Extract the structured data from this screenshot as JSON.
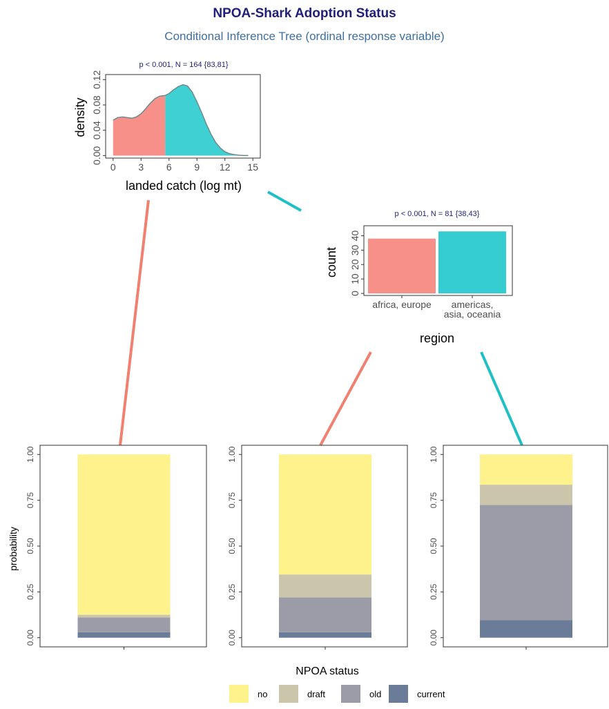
{
  "title": "NPOA-Shark Adoption Status",
  "subtitle": "Conditional Inference Tree (ordinal response variable)",
  "colors": {
    "left_branch": "#f08070",
    "right_branch": "#1ec0c4",
    "density_left": "#f8908a",
    "density_right": "#3fd0d3",
    "bar_left": "#f8908a",
    "bar_right": "#36cdd2",
    "no": "#fdf28c",
    "draft": "#cbc5ab",
    "old": "#9c9ca8",
    "current": "#6a7c98"
  },
  "chart_data": [
    {
      "type": "area",
      "node_label": "p < 0.001, N = 164 {83,81}",
      "xlabel": "landed catch (log mt)",
      "ylabel": "density",
      "x_ticks": [
        "0",
        "3",
        "6",
        "9",
        "12",
        "15"
      ],
      "y_ticks": [
        "0.00",
        "0.04",
        "0.08",
        "0.12"
      ],
      "xlim": [
        -0.8,
        15.8
      ],
      "ylim": [
        -0.004,
        0.128
      ],
      "split_x": 5.6,
      "x": [
        0,
        0.5,
        1,
        1.5,
        2,
        2.5,
        3,
        3.5,
        4,
        4.5,
        5,
        5.6,
        6,
        6.5,
        7,
        7.5,
        8,
        8.5,
        9,
        9.5,
        10,
        10.5,
        11,
        11.5,
        12,
        12.5,
        13,
        13.5,
        14,
        14.5
      ],
      "y": [
        0.056,
        0.06,
        0.061,
        0.06,
        0.059,
        0.061,
        0.066,
        0.074,
        0.083,
        0.09,
        0.094,
        0.095,
        0.098,
        0.104,
        0.109,
        0.112,
        0.11,
        0.1,
        0.085,
        0.068,
        0.05,
        0.034,
        0.021,
        0.012,
        0.006,
        0.003,
        0.0015,
        0.0006,
        0.0002,
        0.0
      ]
    },
    {
      "type": "bar",
      "node_label": "p < 0.001, N = 81 {38,43}",
      "xlabel": "region",
      "ylabel": "count",
      "categories": [
        "africa, europe",
        "americas, asia, oceania"
      ],
      "category_lines": [
        [
          "africa, europe"
        ],
        [
          "americas,",
          "asia, oceania"
        ]
      ],
      "values": [
        38,
        43
      ],
      "y_ticks": [
        "0",
        "10",
        "20",
        "30",
        "40"
      ],
      "ylim": [
        0,
        45
      ]
    },
    {
      "type": "bar",
      "stacked": true,
      "panel": "leaf-1",
      "ylabel": "probability",
      "y_ticks": [
        "0.00",
        "0.25",
        "0.50",
        "0.75",
        "1.00"
      ],
      "ylim": [
        -0.05,
        1.05
      ],
      "series": [
        {
          "name": "current",
          "values": [
            0.03
          ]
        },
        {
          "name": "old",
          "values": [
            0.08
          ]
        },
        {
          "name": "draft",
          "values": [
            0.015
          ]
        },
        {
          "name": "no",
          "values": [
            0.875
          ]
        }
      ]
    },
    {
      "type": "bar",
      "stacked": true,
      "panel": "leaf-2",
      "y_ticks": [
        "0.00",
        "0.25",
        "0.50",
        "0.75",
        "1.00"
      ],
      "ylim": [
        -0.05,
        1.05
      ],
      "series": [
        {
          "name": "current",
          "values": [
            0.03
          ]
        },
        {
          "name": "old",
          "values": [
            0.19
          ]
        },
        {
          "name": "draft",
          "values": [
            0.125
          ]
        },
        {
          "name": "no",
          "values": [
            0.655
          ]
        }
      ]
    },
    {
      "type": "bar",
      "stacked": true,
      "panel": "leaf-3",
      "y_ticks": [
        "0.00",
        "0.25",
        "0.50",
        "0.75",
        "1.00"
      ],
      "ylim": [
        -0.05,
        1.05
      ],
      "series": [
        {
          "name": "current",
          "values": [
            0.095
          ]
        },
        {
          "name": "old",
          "values": [
            0.63
          ]
        },
        {
          "name": "draft",
          "values": [
            0.11
          ]
        },
        {
          "name": "no",
          "values": [
            0.165
          ]
        }
      ]
    }
  ],
  "legend": {
    "title": "NPOA status",
    "items": [
      {
        "key": "no",
        "label": "no"
      },
      {
        "key": "draft",
        "label": "draft"
      },
      {
        "key": "old",
        "label": "old"
      },
      {
        "key": "current",
        "label": "current"
      }
    ]
  }
}
